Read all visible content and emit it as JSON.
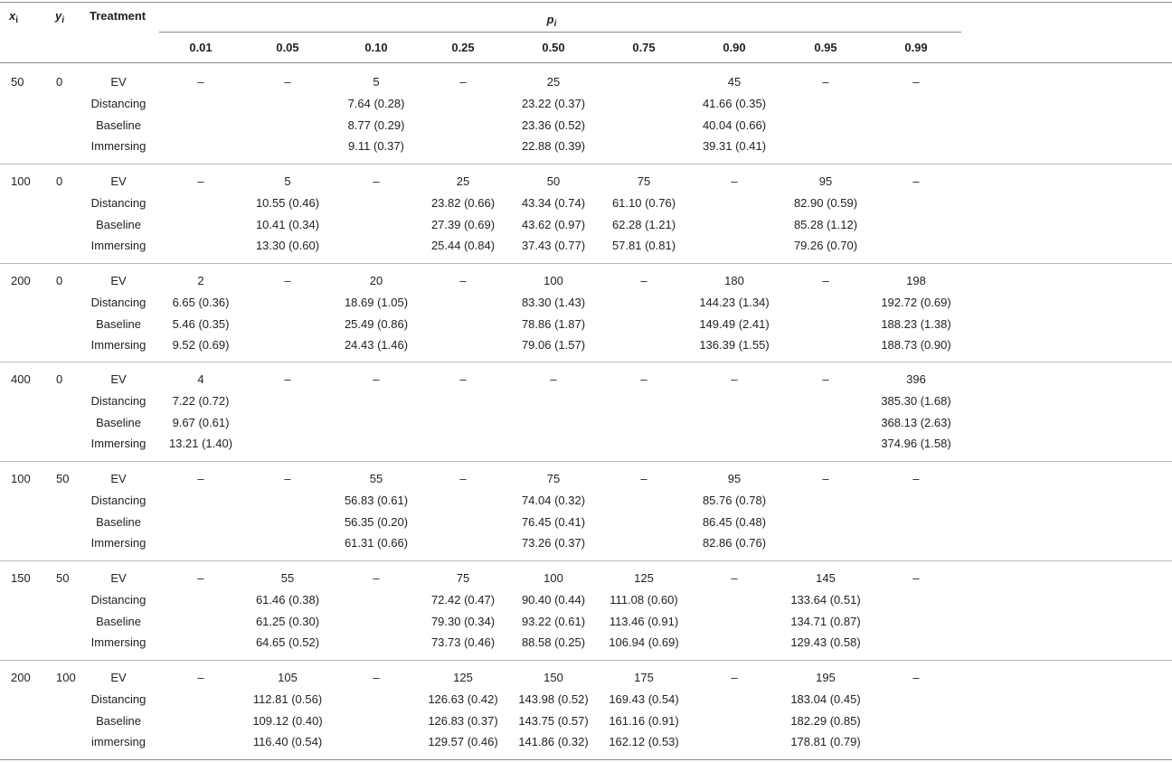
{
  "headers": {
    "x": "x",
    "x_sub": "i",
    "y": "y",
    "y_sub": "i",
    "treatment": "Treatment",
    "p": "p",
    "p_sub": "i",
    "p_values": [
      "0.01",
      "0.05",
      "0.10",
      "0.25",
      "0.50",
      "0.75",
      "0.90",
      "0.95",
      "0.99"
    ]
  },
  "groups": [
    {
      "x": "50",
      "y": "0",
      "rows": [
        {
          "treatment": "EV",
          "cells": [
            "–",
            "–",
            "5",
            "–",
            "25",
            "",
            "45",
            "–",
            "–"
          ]
        },
        {
          "treatment": "Distancing",
          "cells": [
            "",
            "",
            "7.64 (0.28)",
            "",
            "23.22 (0.37)",
            "",
            "41.66 (0.35)",
            "",
            ""
          ]
        },
        {
          "treatment": "Baseline",
          "cells": [
            "",
            "",
            "8.77 (0.29)",
            "",
            "23.36 (0.52)",
            "",
            "40.04 (0.66)",
            "",
            ""
          ]
        },
        {
          "treatment": "Immersing",
          "cells": [
            "",
            "",
            "9.11 (0.37)",
            "",
            "22.88 (0.39)",
            "",
            "39.31 (0.41)",
            "",
            ""
          ]
        }
      ]
    },
    {
      "x": "100",
      "y": "0",
      "rows": [
        {
          "treatment": "EV",
          "cells": [
            "–",
            "5",
            "–",
            "25",
            "50",
            "75",
            "–",
            "95",
            "–"
          ]
        },
        {
          "treatment": "Distancing",
          "cells": [
            "",
            "10.55 (0.46)",
            "",
            "23.82 (0.66)",
            "43.34 (0.74)",
            "61.10 (0.76)",
            "",
            "82.90 (0.59)",
            ""
          ]
        },
        {
          "treatment": "Baseline",
          "cells": [
            "",
            "10.41 (0.34)",
            "",
            "27.39 (0.69)",
            "43.62 (0.97)",
            "62.28 (1.21)",
            "",
            "85.28 (1.12)",
            ""
          ]
        },
        {
          "treatment": "Immersing",
          "cells": [
            "",
            "13.30 (0.60)",
            "",
            "25.44 (0.84)",
            "37.43 (0.77)",
            "57.81 (0.81)",
            "",
            "79.26 (0.70)",
            ""
          ]
        }
      ]
    },
    {
      "x": "200",
      "y": "0",
      "rows": [
        {
          "treatment": "EV",
          "cells": [
            "2",
            "–",
            "20",
            "–",
            "100",
            "–",
            "180",
            "–",
            "198"
          ]
        },
        {
          "treatment": "Distancing",
          "cells": [
            "6.65 (0.36)",
            "",
            "18.69 (1.05)",
            "",
            "83.30 (1.43)",
            "",
            "144.23 (1.34)",
            "",
            "192.72 (0.69)"
          ]
        },
        {
          "treatment": "Baseline",
          "cells": [
            "5.46 (0.35)",
            "",
            "25.49 (0.86)",
            "",
            "78.86 (1.87)",
            "",
            "149.49 (2.41)",
            "",
            "188.23 (1.38)"
          ]
        },
        {
          "treatment": "Immersing",
          "cells": [
            "9.52 (0.69)",
            "",
            "24.43 (1.46)",
            "",
            "79.06 (1.57)",
            "",
            "136.39 (1.55)",
            "",
            "188.73 (0.90)"
          ]
        }
      ]
    },
    {
      "x": "400",
      "y": "0",
      "rows": [
        {
          "treatment": "EV",
          "cells": [
            "4",
            "–",
            "–",
            "–",
            "–",
            "–",
            "–",
            "–",
            "396"
          ]
        },
        {
          "treatment": "Distancing",
          "cells": [
            "7.22 (0.72)",
            "",
            "",
            "",
            "",
            "",
            "",
            "",
            "385.30 (1.68)"
          ]
        },
        {
          "treatment": "Baseline",
          "cells": [
            "9.67 (0.61)",
            "",
            "",
            "",
            "",
            "",
            "",
            "",
            "368.13 (2.63)"
          ]
        },
        {
          "treatment": "Immersing",
          "cells": [
            "13.21 (1.40)",
            "",
            "",
            "",
            "",
            "",
            "",
            "",
            "374.96 (1.58)"
          ]
        }
      ]
    },
    {
      "x": "100",
      "y": "50",
      "rows": [
        {
          "treatment": "EV",
          "cells": [
            "–",
            "–",
            "55",
            "–",
            "75",
            "–",
            "95",
            "–",
            "–"
          ]
        },
        {
          "treatment": "Distancing",
          "cells": [
            "",
            "",
            "56.83 (0.61)",
            "",
            "74.04 (0.32)",
            "",
            "85.76 (0.78)",
            "",
            ""
          ]
        },
        {
          "treatment": "Baseline",
          "cells": [
            "",
            "",
            "56.35 (0.20)",
            "",
            "76.45 (0.41)",
            "",
            "86.45 (0.48)",
            "",
            ""
          ]
        },
        {
          "treatment": "Immersing",
          "cells": [
            "",
            "",
            "61.31 (0.66)",
            "",
            "73.26 (0.37)",
            "",
            "82.86 (0.76)",
            "",
            ""
          ]
        }
      ]
    },
    {
      "x": "150",
      "y": "50",
      "rows": [
        {
          "treatment": "EV",
          "cells": [
            "–",
            "55",
            "–",
            "75",
            "100",
            "125",
            "–",
            "145",
            "–"
          ]
        },
        {
          "treatment": "Distancing",
          "cells": [
            "",
            "61.46 (0.38)",
            "",
            "72.42 (0.47)",
            "90.40 (0.44)",
            "111.08 (0.60)",
            "",
            "133.64 (0.51)",
            ""
          ]
        },
        {
          "treatment": "Baseline",
          "cells": [
            "",
            "61.25 (0.30)",
            "",
            "79.30 (0.34)",
            "93.22 (0.61)",
            "113.46 (0.91)",
            "",
            "134.71 (0.87)",
            ""
          ]
        },
        {
          "treatment": "Immersing",
          "cells": [
            "",
            "64.65 (0.52)",
            "",
            "73.73 (0.46)",
            "88.58 (0.25)",
            "106.94 (0.69)",
            "",
            "129.43 (0.58)",
            ""
          ]
        }
      ]
    },
    {
      "x": "200",
      "y": "100",
      "rows": [
        {
          "treatment": "EV",
          "cells": [
            "–",
            "105",
            "–",
            "125",
            "150",
            "175",
            "–",
            "195",
            "–"
          ]
        },
        {
          "treatment": "Distancing",
          "cells": [
            "",
            "112.81 (0.56)",
            "",
            "126.63 (0.42)",
            "143.98 (0.52)",
            "169.43 (0.54)",
            "",
            "183.04 (0.45)",
            ""
          ]
        },
        {
          "treatment": "Baseline",
          "cells": [
            "",
            "109.12 (0.40)",
            "",
            "126.83 (0.37)",
            "143.75 (0.57)",
            "161.16 (0.91)",
            "",
            "182.29 (0.85)",
            ""
          ]
        },
        {
          "treatment": "immersing",
          "cells": [
            "",
            "116.40 (0.54)",
            "",
            "129.57 (0.46)",
            "141.86 (0.32)",
            "162.12 (0.53)",
            "",
            "178.81 (0.79)",
            ""
          ]
        }
      ]
    }
  ]
}
